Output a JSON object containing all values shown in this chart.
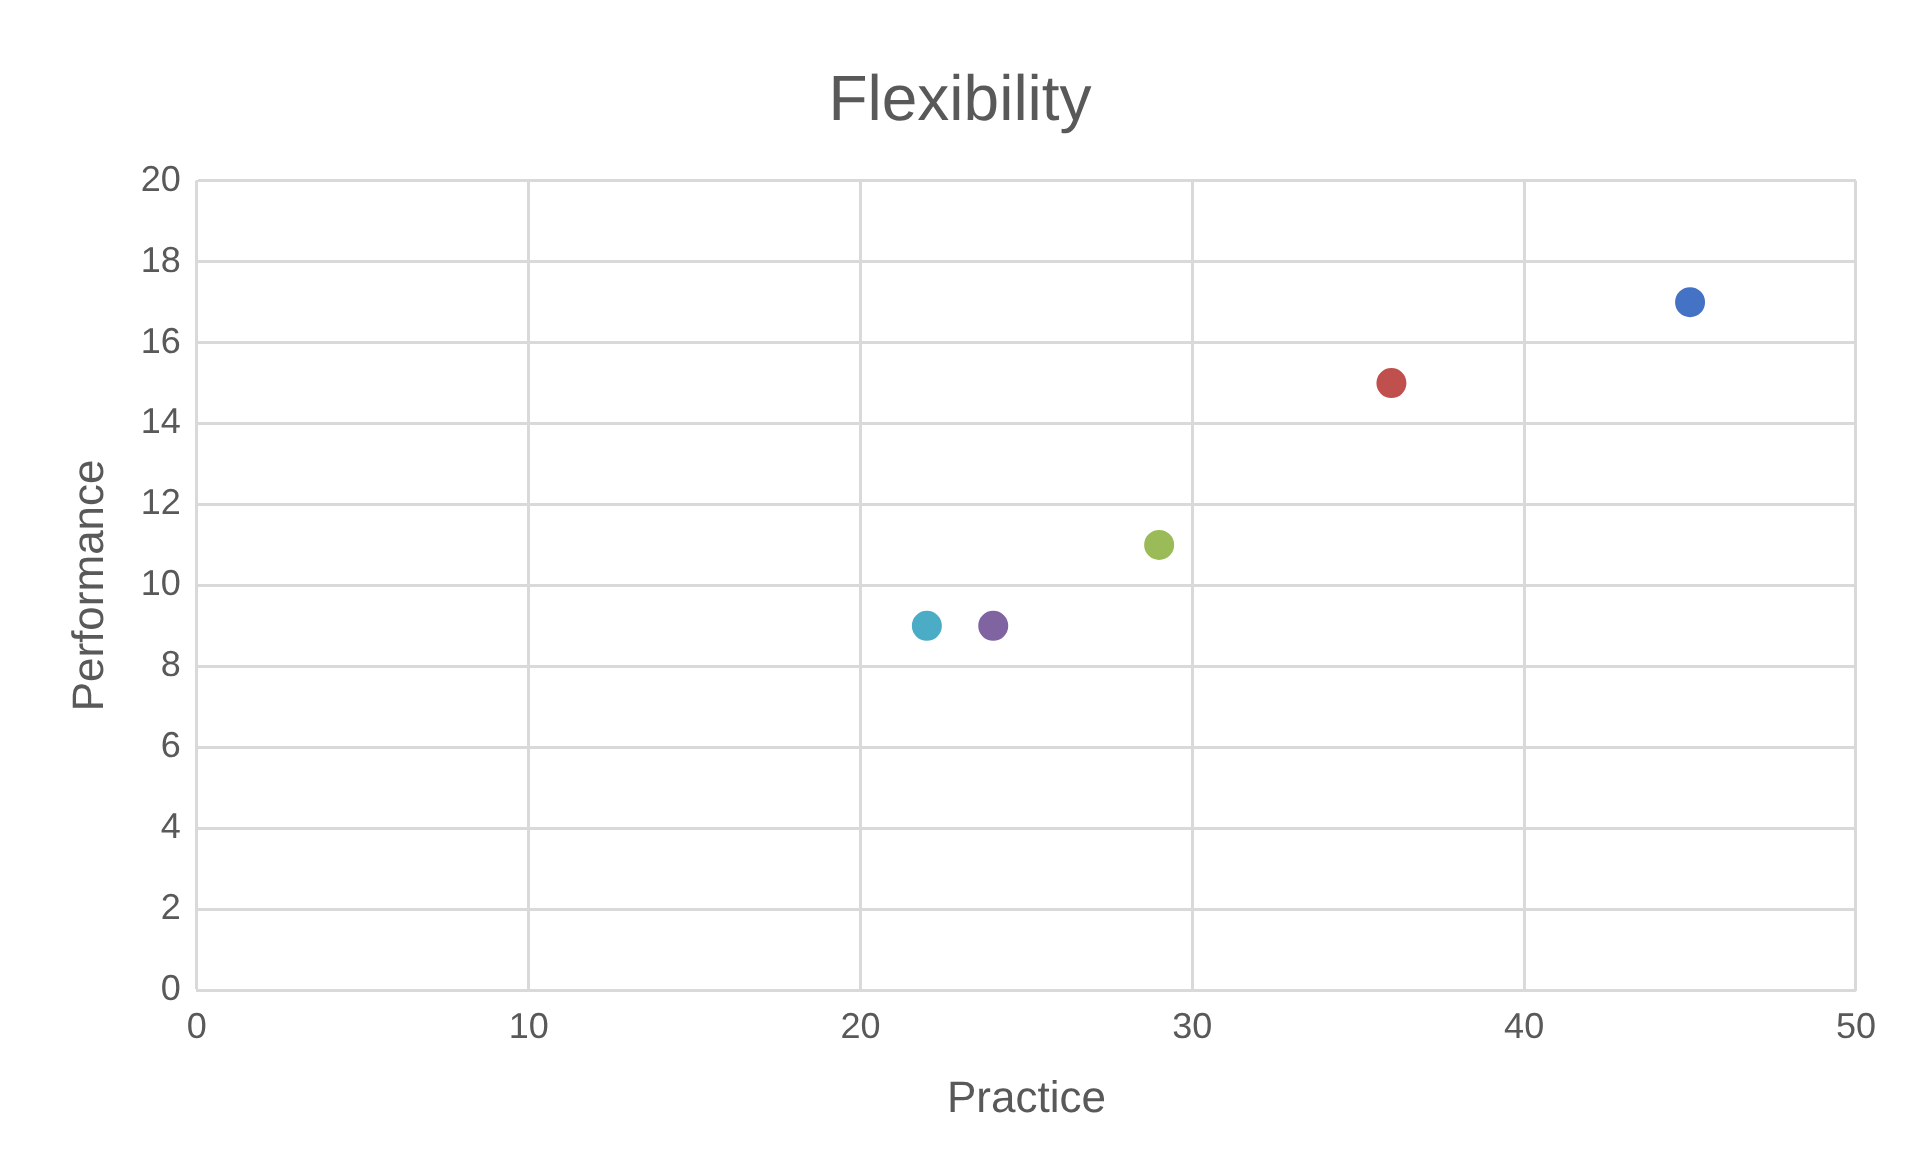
{
  "chart_data": {
    "type": "scatter",
    "title": "Flexibility",
    "xlabel": "Practice",
    "ylabel": "Performance",
    "x": [
      45,
      36,
      29,
      24,
      22
    ],
    "values": [
      17,
      15,
      11,
      9,
      9
    ],
    "colors": [
      "#4472c4",
      "#c0504d",
      "#9bbb59",
      "#8064a2",
      "#4bacc6"
    ],
    "xlim": [
      0,
      50
    ],
    "xticks": [
      0,
      10,
      20,
      30,
      40,
      50
    ],
    "ylim": [
      0,
      20
    ],
    "yticks": [
      0,
      2,
      4,
      6,
      8,
      10,
      12,
      14,
      16,
      18,
      20
    ],
    "grid": true,
    "legend": false,
    "marker": "circle"
  }
}
